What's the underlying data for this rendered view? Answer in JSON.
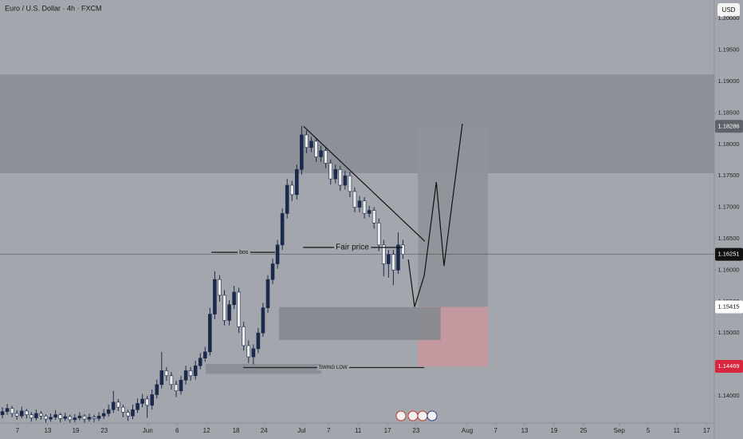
{
  "chart_data": {
    "type": "candlestick",
    "title": "Euro / U.S. Dollar · 4h · FXCM",
    "currency": "USD",
    "up_color": "#1b2a4a",
    "down_color": "#ececec",
    "wick_color": "#1b2a4a",
    "xlim": [
      -0.5,
      147.5
    ],
    "xticks": [
      {
        "value": 3.1,
        "label": "7"
      },
      {
        "value": 9.4,
        "label": "13"
      },
      {
        "value": 15.2,
        "label": "19"
      },
      {
        "value": 21.1,
        "label": "23"
      },
      {
        "value": 30.1,
        "label": "Jun"
      },
      {
        "value": 36.2,
        "label": "6"
      },
      {
        "value": 42.3,
        "label": "12"
      },
      {
        "value": 48.4,
        "label": "18"
      },
      {
        "value": 54.2,
        "label": "24"
      },
      {
        "value": 62,
        "label": "Jul"
      },
      {
        "value": 67.6,
        "label": "7"
      },
      {
        "value": 73.7,
        "label": "11"
      },
      {
        "value": 79.8,
        "label": "17"
      },
      {
        "value": 85.7,
        "label": "23"
      },
      {
        "value": 96.3,
        "label": "Aug"
      },
      {
        "value": 102.2,
        "label": "7"
      },
      {
        "value": 108.2,
        "label": "13"
      },
      {
        "value": 114.3,
        "label": "19"
      },
      {
        "value": 120.4,
        "label": "25"
      },
      {
        "value": 127.8,
        "label": "Sep"
      },
      {
        "value": 133.8,
        "label": "5"
      },
      {
        "value": 139.7,
        "label": "11"
      },
      {
        "value": 145.9,
        "label": "17"
      }
    ],
    "ylim": [
      1.13568,
      1.20295
    ],
    "yticks": [
      {
        "value": 1.14,
        "label": "1.14000"
      },
      {
        "value": 1.145,
        "label": "1.14500"
      },
      {
        "value": 1.15,
        "label": "1.15000"
      },
      {
        "value": 1.155,
        "label": "1.15500"
      },
      {
        "value": 1.16,
        "label": "1.16000"
      },
      {
        "value": 1.165,
        "label": "1.16500"
      },
      {
        "value": 1.17,
        "label": "1.17000"
      },
      {
        "value": 1.175,
        "label": "1.17500"
      },
      {
        "value": 1.18,
        "label": "1.18000"
      },
      {
        "value": 1.185,
        "label": "1.18500"
      },
      {
        "value": 1.19,
        "label": "1.19000"
      },
      {
        "value": 1.195,
        "label": "1.19500"
      },
      {
        "value": 1.2,
        "label": "1.20000"
      }
    ],
    "ohlc": [
      [
        1.137,
        1.1382,
        1.1364,
        1.1375
      ],
      [
        1.1375,
        1.1387,
        1.137,
        1.138
      ],
      [
        1.138,
        1.1384,
        1.1366,
        1.1372
      ],
      [
        1.1372,
        1.1377,
        1.1362,
        1.1368
      ],
      [
        1.1368,
        1.1383,
        1.1364,
        1.1376
      ],
      [
        1.1376,
        1.1379,
        1.1364,
        1.137
      ],
      [
        1.137,
        1.1374,
        1.1359,
        1.1365
      ],
      [
        1.1365,
        1.1378,
        1.1361,
        1.1372
      ],
      [
        1.1372,
        1.1376,
        1.1362,
        1.1368
      ],
      [
        1.1368,
        1.1371,
        1.1357,
        1.1363
      ],
      [
        1.1363,
        1.1372,
        1.1359,
        1.1366
      ],
      [
        1.1366,
        1.1377,
        1.1362,
        1.137
      ],
      [
        1.137,
        1.1373,
        1.1358,
        1.1364
      ],
      [
        1.1364,
        1.1373,
        1.136,
        1.1367
      ],
      [
        1.1367,
        1.137,
        1.1356,
        1.1362
      ],
      [
        1.1362,
        1.1371,
        1.1358,
        1.1365
      ],
      [
        1.1365,
        1.1374,
        1.1361,
        1.1368
      ],
      [
        1.1368,
        1.1371,
        1.1357,
        1.1363
      ],
      [
        1.1363,
        1.1372,
        1.1359,
        1.1366
      ],
      [
        1.1366,
        1.137,
        1.1358,
        1.1364
      ],
      [
        1.1364,
        1.1374,
        1.136,
        1.1368
      ],
      [
        1.1368,
        1.1379,
        1.1363,
        1.1372
      ],
      [
        1.1372,
        1.1386,
        1.1367,
        1.1378
      ],
      [
        1.1378,
        1.1408,
        1.1373,
        1.139
      ],
      [
        1.139,
        1.1395,
        1.1376,
        1.1382
      ],
      [
        1.1382,
        1.1386,
        1.1366,
        1.1374
      ],
      [
        1.1374,
        1.1378,
        1.136,
        1.1368
      ],
      [
        1.1368,
        1.1386,
        1.1363,
        1.1378
      ],
      [
        1.1378,
        1.1396,
        1.1373,
        1.1388
      ],
      [
        1.1388,
        1.1403,
        1.1382,
        1.1395
      ],
      [
        1.1395,
        1.14,
        1.1365,
        1.1385
      ],
      [
        1.1385,
        1.141,
        1.1378,
        1.1402
      ],
      [
        1.1402,
        1.1426,
        1.1396,
        1.1418
      ],
      [
        1.1418,
        1.147,
        1.1412,
        1.144
      ],
      [
        1.144,
        1.1446,
        1.1424,
        1.1432
      ],
      [
        1.1432,
        1.1438,
        1.141,
        1.1418
      ],
      [
        1.1418,
        1.1424,
        1.1398,
        1.1408
      ],
      [
        1.1408,
        1.1432,
        1.1402,
        1.1425
      ],
      [
        1.1425,
        1.1448,
        1.1418,
        1.144
      ],
      [
        1.144,
        1.1446,
        1.1424,
        1.1432
      ],
      [
        1.1432,
        1.1456,
        1.1426,
        1.1448
      ],
      [
        1.1448,
        1.1468,
        1.1442,
        1.146
      ],
      [
        1.146,
        1.1478,
        1.1454,
        1.147
      ],
      [
        1.147,
        1.154,
        1.1464,
        1.153
      ],
      [
        1.153,
        1.1598,
        1.1522,
        1.1585
      ],
      [
        1.1585,
        1.1592,
        1.155,
        1.156
      ],
      [
        1.156,
        1.1568,
        1.1512,
        1.152
      ],
      [
        1.152,
        1.1552,
        1.1512,
        1.1545
      ],
      [
        1.1545,
        1.1575,
        1.1538,
        1.1565
      ],
      [
        1.1565,
        1.1572,
        1.15,
        1.151
      ],
      [
        1.151,
        1.1518,
        1.1472,
        1.148
      ],
      [
        1.148,
        1.1488,
        1.1452,
        1.1462
      ],
      [
        1.1462,
        1.1482,
        1.145,
        1.1475
      ],
      [
        1.1475,
        1.1508,
        1.1468,
        1.15
      ],
      [
        1.15,
        1.1548,
        1.1494,
        1.154
      ],
      [
        1.154,
        1.1592,
        1.1532,
        1.1585
      ],
      [
        1.1585,
        1.1618,
        1.1578,
        1.161
      ],
      [
        1.161,
        1.1648,
        1.1602,
        1.164
      ],
      [
        1.164,
        1.1698,
        1.1632,
        1.169
      ],
      [
        1.169,
        1.1745,
        1.1682,
        1.1735
      ],
      [
        1.1735,
        1.1742,
        1.171,
        1.172
      ],
      [
        1.172,
        1.1768,
        1.1712,
        1.176
      ],
      [
        1.176,
        1.1829,
        1.1752,
        1.1815
      ],
      [
        1.1815,
        1.1822,
        1.1786,
        1.1795
      ],
      [
        1.1795,
        1.1812,
        1.1788,
        1.1805
      ],
      [
        1.1805,
        1.181,
        1.1772,
        1.178
      ],
      [
        1.178,
        1.1798,
        1.1772,
        1.179
      ],
      [
        1.179,
        1.1796,
        1.1762,
        1.177
      ],
      [
        1.177,
        1.1776,
        1.1736,
        1.1745
      ],
      [
        1.1745,
        1.1768,
        1.1738,
        1.176
      ],
      [
        1.176,
        1.1766,
        1.1726,
        1.1735
      ],
      [
        1.1735,
        1.1758,
        1.1728,
        1.175
      ],
      [
        1.175,
        1.1756,
        1.1716,
        1.1725
      ],
      [
        1.1725,
        1.1732,
        1.1692,
        1.17
      ],
      [
        1.17,
        1.1718,
        1.1692,
        1.171
      ],
      [
        1.171,
        1.1716,
        1.1682,
        1.169
      ],
      [
        1.169,
        1.1702,
        1.1684,
        1.1695
      ],
      [
        1.1695,
        1.17,
        1.1666,
        1.1675
      ],
      [
        1.1675,
        1.1682,
        1.163,
        1.164
      ],
      [
        1.164,
        1.1648,
        1.159,
        1.161
      ],
      [
        1.161,
        1.1632,
        1.1588,
        1.1625
      ],
      [
        1.1625,
        1.1632,
        1.1576,
        1.16
      ],
      [
        1.16,
        1.166,
        1.1594,
        1.164
      ],
      [
        1.164,
        1.1648,
        1.1618,
        1.1625
      ]
    ],
    "zones": [
      {
        "x0": -0.5,
        "x1": 147.5,
        "y0": 1.1754,
        "y1": 1.1911,
        "color": "#8b8e95"
      },
      {
        "x0": 86.1,
        "x1": 100.6,
        "y0": 1.15415,
        "y1": 1.18286,
        "color": "#8f9298"
      },
      {
        "x0": 86.1,
        "x1": 100.6,
        "y0": 1.14469,
        "y1": 1.15415,
        "color": "#c8979d"
      },
      {
        "x0": 57.3,
        "x1": 90.8,
        "y0": 1.1489,
        "y1": 1.1541,
        "color": "#86888f"
      },
      {
        "x0": 42.1,
        "x1": 66.1,
        "y0": 1.1435,
        "y1": 1.1451,
        "color": "#8a8d93"
      }
    ],
    "lines": [
      {
        "x": [
          62.4,
          87.5
        ],
        "y": [
          1.18286,
          1.1646
        ],
        "color": "#111111"
      },
      {
        "x": [
          84.1,
          85.4,
          87.4,
          89.9,
          91.5,
          95.3
        ],
        "y": [
          1.16168,
          1.15415,
          1.15914,
          1.174,
          1.16067,
          1.18327
        ],
        "color": "#111111"
      },
      {
        "x": [
          62.3,
          82.9
        ],
        "y": [
          1.1636,
          1.1636
        ],
        "color": "#111111"
      },
      {
        "x": [
          43.3,
          56.5
        ],
        "y": [
          1.16283,
          1.16283
        ],
        "color": "#111111"
      },
      {
        "x": [
          49.9,
          87.4
        ],
        "y": [
          1.1445,
          1.1445
        ],
        "color": "#222222"
      }
    ],
    "annotations": [
      {
        "text": "Fair price",
        "x": 72.5,
        "y": 1.1636,
        "size": 10
      },
      {
        "text": "bos",
        "x": 50,
        "y": 1.16283,
        "size": 7
      },
      {
        "text": "SWING LOW",
        "x": 68.5,
        "y": 1.1445,
        "size": 6
      }
    ],
    "current_price": {
      "value": 1.16251,
      "color": "#111111"
    },
    "price_labels": [
      {
        "value": 1.18286,
        "bg": "#5f6269",
        "fg": "#ffffff"
      },
      {
        "value": 1.15415,
        "bg": "#ffffff",
        "fg": "#111111"
      },
      {
        "value": 1.14469,
        "bg": "#d7263d",
        "fg": "#ffffff"
      }
    ]
  }
}
